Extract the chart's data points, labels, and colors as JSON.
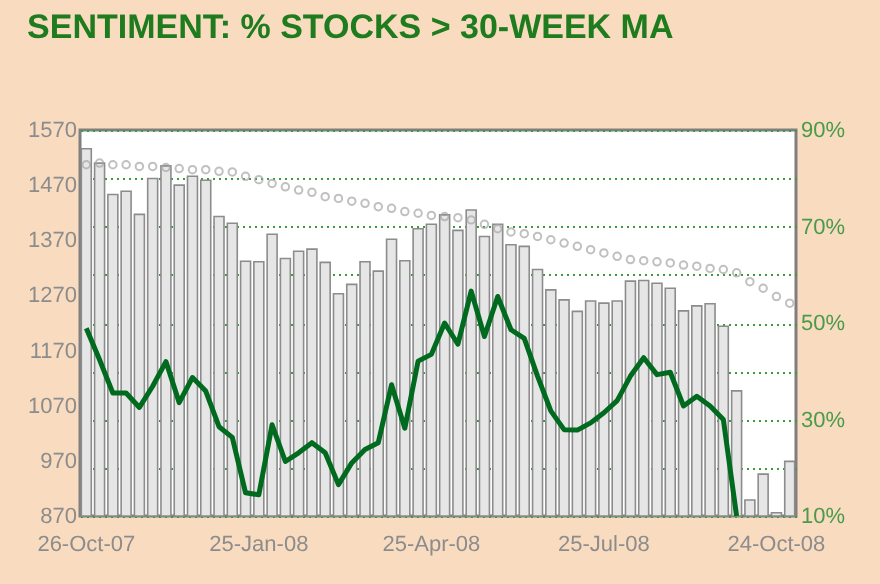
{
  "chart_data": {
    "type": "bar",
    "title": "SENTIMENT: % STOCKS > 30-WEEK MA",
    "categories": [
      "26-Oct-07",
      null,
      null,
      null,
      null,
      null,
      null,
      null,
      null,
      null,
      null,
      null,
      null,
      "25-Jan-08",
      null,
      null,
      null,
      null,
      null,
      null,
      null,
      null,
      null,
      null,
      null,
      null,
      "25-Apr-08",
      null,
      null,
      null,
      null,
      null,
      null,
      null,
      null,
      null,
      null,
      null,
      null,
      "25-Jul-08",
      null,
      null,
      null,
      null,
      null,
      null,
      null,
      null,
      null,
      null,
      null,
      null,
      "24-Oct-08",
      null
    ],
    "series": [
      {
        "color": "#e6e6e6",
        "values": [
          1536,
          1510,
          1453,
          1459,
          1417,
          1482,
          1505,
          1470,
          1486,
          1479,
          1413,
          1401,
          1332,
          1331,
          1381,
          1337,
          1350,
          1354,
          1330,
          1273,
          1290,
          1331,
          1314,
          1372,
          1333,
          1391,
          1399,
          1416,
          1388,
          1425,
          1377,
          1399,
          1362,
          1359,
          1317,
          1280,
          1262,
          1241,
          1260,
          1256,
          1260,
          1296,
          1297,
          1292,
          1283,
          1242,
          1251,
          1255,
          1214,
          1097,
          899,
          946,
          876,
          969
        ]
      },
      {
        "type": "scatter",
        "marker": "circle",
        "color": "#a6a6a6",
        "values": [
          1507,
          1510,
          1507,
          1507,
          1504,
          1504,
          1502,
          1500,
          1498,
          1498,
          1495,
          1494,
          1486,
          1480,
          1473,
          1467,
          1461,
          1457,
          1449,
          1446,
          1441,
          1437,
          1431,
          1428,
          1422,
          1419,
          1415,
          1413,
          1411,
          1407,
          1399,
          1391,
          1385,
          1382,
          1377,
          1371,
          1365,
          1359,
          1353,
          1347,
          1341,
          1335,
          1333,
          1331,
          1329,
          1325,
          1323,
          1319,
          1317,
          1311,
          1295,
          1283,
          1268,
          1256
        ]
      },
      {
        "type": "line",
        "axis": "y2",
        "color": "#006a1f",
        "values": [
          48.9,
          42.4,
          35.5,
          35.5,
          32.5,
          36.9,
          42.0,
          33.5,
          38.7,
          35.9,
          28.5,
          26.3,
          14.8,
          14.4,
          28.9,
          21.3,
          23.1,
          25.2,
          23.1,
          16.5,
          21.0,
          23.8,
          25.2,
          37.2,
          28.2,
          42.1,
          43.5,
          50.0,
          45.6,
          56.6,
          47.2,
          55.5,
          48.6,
          46.8,
          39.0,
          31.8,
          27.9,
          27.8,
          29.3,
          31.4,
          33.9,
          39.0,
          42.8,
          39.3,
          39.8,
          32.8,
          34.8,
          32.8,
          30.0,
          10,
          null,
          null,
          null,
          null
        ]
      }
    ],
    "ylim": [
      870,
      1570
    ],
    "yticks": [
      870,
      970,
      1070,
      1170,
      1270,
      1370,
      1470,
      1570
    ],
    "y2lim": [
      10,
      90
    ],
    "y2ticks": [
      {
        "value": 10,
        "label": "10%"
      },
      {
        "value": 20,
        "label": null
      },
      {
        "value": 30,
        "label": "30%"
      },
      {
        "value": 40,
        "label": null
      },
      {
        "value": 50,
        "label": "50%"
      },
      {
        "value": 60,
        "label": null
      },
      {
        "value": 70,
        "label": "70%"
      },
      {
        "value": 80,
        "label": null
      },
      {
        "value": 90,
        "label": "90%"
      }
    ],
    "grid": true
  }
}
